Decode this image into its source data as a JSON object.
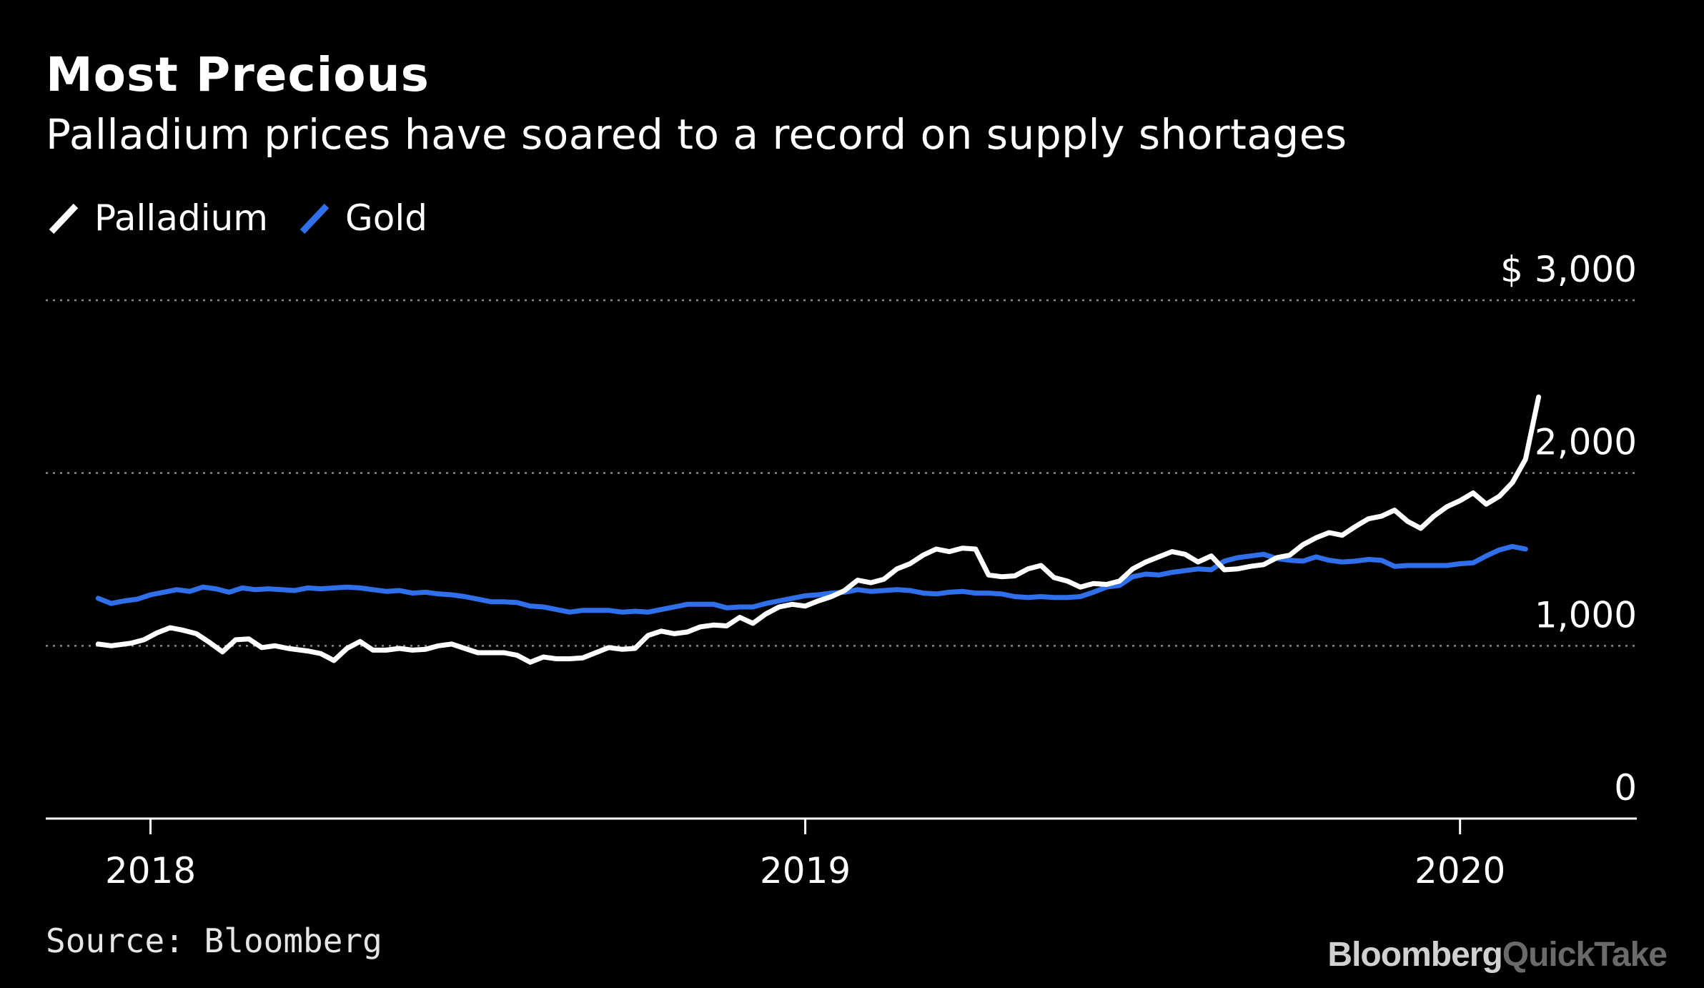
{
  "header": {
    "title": "Most Precious",
    "subtitle": "Palladium prices have soared to a record on supply shortages"
  },
  "legend": [
    {
      "label": "Palladium",
      "color": "#ffffff"
    },
    {
      "label": "Gold",
      "color": "#2f6fea"
    }
  ],
  "footer": {
    "source": "Source: Bloomberg",
    "brand_primary": "Bloomberg",
    "brand_secondary": "QuickTake"
  },
  "chart_data": {
    "type": "line",
    "title": "Most Precious",
    "subtitle": "Palladium prices have soared to a record on supply shortages",
    "xlabel": "",
    "ylabel": "",
    "xlim": [
      2017.84,
      2020.27
    ],
    "ylim": [
      0,
      3000
    ],
    "x_ticks": [
      2018,
      2019,
      2020
    ],
    "x_tick_labels": [
      "2018",
      "2019",
      "2020"
    ],
    "y_ticks": [
      0,
      1000,
      2000,
      3000
    ],
    "y_tick_labels": [
      "0",
      "1,000",
      "2,000",
      "$ 3,000"
    ],
    "grid": "horizontal dotted",
    "legend_position": "top-left",
    "series": [
      {
        "name": "Palladium",
        "color": "#ffffff",
        "points": [
          [
            2017.92,
            1010
          ],
          [
            2017.94,
            1000
          ],
          [
            2017.97,
            1015
          ],
          [
            2017.99,
            1035
          ],
          [
            2018.01,
            1075
          ],
          [
            2018.03,
            1105
          ],
          [
            2018.05,
            1090
          ],
          [
            2018.07,
            1070
          ],
          [
            2018.09,
            1020
          ],
          [
            2018.11,
            965
          ],
          [
            2018.13,
            1035
          ],
          [
            2018.15,
            1040
          ],
          [
            2018.17,
            990
          ],
          [
            2018.19,
            1000
          ],
          [
            2018.21,
            985
          ],
          [
            2018.24,
            970
          ],
          [
            2018.26,
            955
          ],
          [
            2018.28,
            915
          ],
          [
            2018.3,
            985
          ],
          [
            2018.32,
            1025
          ],
          [
            2018.34,
            975
          ],
          [
            2018.36,
            975
          ],
          [
            2018.38,
            985
          ],
          [
            2018.4,
            975
          ],
          [
            2018.42,
            980
          ],
          [
            2018.44,
            1000
          ],
          [
            2018.46,
            1010
          ],
          [
            2018.48,
            985
          ],
          [
            2018.5,
            960
          ],
          [
            2018.52,
            960
          ],
          [
            2018.54,
            960
          ],
          [
            2018.56,
            945
          ],
          [
            2018.58,
            905
          ],
          [
            2018.6,
            935
          ],
          [
            2018.62,
            925
          ],
          [
            2018.64,
            925
          ],
          [
            2018.66,
            930
          ],
          [
            2018.68,
            960
          ],
          [
            2018.7,
            990
          ],
          [
            2018.72,
            980
          ],
          [
            2018.74,
            985
          ],
          [
            2018.76,
            1060
          ],
          [
            2018.78,
            1085
          ],
          [
            2018.8,
            1070
          ],
          [
            2018.82,
            1080
          ],
          [
            2018.84,
            1110
          ],
          [
            2018.86,
            1120
          ],
          [
            2018.88,
            1115
          ],
          [
            2018.9,
            1165
          ],
          [
            2018.92,
            1130
          ],
          [
            2018.94,
            1185
          ],
          [
            2018.96,
            1225
          ],
          [
            2018.98,
            1240
          ],
          [
            2019.0,
            1230
          ],
          [
            2019.02,
            1260
          ],
          [
            2019.04,
            1285
          ],
          [
            2019.06,
            1320
          ],
          [
            2019.08,
            1380
          ],
          [
            2019.1,
            1365
          ],
          [
            2019.12,
            1385
          ],
          [
            2019.14,
            1445
          ],
          [
            2019.16,
            1475
          ],
          [
            2019.18,
            1525
          ],
          [
            2019.2,
            1560
          ],
          [
            2019.22,
            1545
          ],
          [
            2019.24,
            1565
          ],
          [
            2019.26,
            1560
          ],
          [
            2019.28,
            1410
          ],
          [
            2019.3,
            1400
          ],
          [
            2019.32,
            1405
          ],
          [
            2019.34,
            1445
          ],
          [
            2019.36,
            1465
          ],
          [
            2019.38,
            1395
          ],
          [
            2019.4,
            1375
          ],
          [
            2019.42,
            1340
          ],
          [
            2019.44,
            1360
          ],
          [
            2019.46,
            1355
          ],
          [
            2019.48,
            1375
          ],
          [
            2019.5,
            1445
          ],
          [
            2019.52,
            1485
          ],
          [
            2019.54,
            1515
          ],
          [
            2019.56,
            1545
          ],
          [
            2019.58,
            1530
          ],
          [
            2019.6,
            1485
          ],
          [
            2019.62,
            1520
          ],
          [
            2019.64,
            1440
          ],
          [
            2019.66,
            1445
          ],
          [
            2019.68,
            1460
          ],
          [
            2019.7,
            1470
          ],
          [
            2019.72,
            1510
          ],
          [
            2019.74,
            1525
          ],
          [
            2019.76,
            1585
          ],
          [
            2019.78,
            1625
          ],
          [
            2019.8,
            1655
          ],
          [
            2019.82,
            1640
          ],
          [
            2019.84,
            1690
          ],
          [
            2019.86,
            1735
          ],
          [
            2019.88,
            1750
          ],
          [
            2019.9,
            1785
          ],
          [
            2019.92,
            1720
          ],
          [
            2019.94,
            1680
          ],
          [
            2019.96,
            1750
          ],
          [
            2019.98,
            1805
          ],
          [
            2020.0,
            1840
          ],
          [
            2020.02,
            1885
          ],
          [
            2020.04,
            1820
          ],
          [
            2020.06,
            1865
          ],
          [
            2020.08,
            1945
          ],
          [
            2020.1,
            2080
          ],
          [
            2020.12,
            2440
          ]
        ]
      },
      {
        "name": "Gold",
        "color": "#2f6fea",
        "points": [
          [
            2017.92,
            1275
          ],
          [
            2017.94,
            1245
          ],
          [
            2017.96,
            1260
          ],
          [
            2017.98,
            1270
          ],
          [
            2018.0,
            1295
          ],
          [
            2018.02,
            1310
          ],
          [
            2018.04,
            1325
          ],
          [
            2018.06,
            1315
          ],
          [
            2018.08,
            1340
          ],
          [
            2018.1,
            1330
          ],
          [
            2018.12,
            1310
          ],
          [
            2018.14,
            1335
          ],
          [
            2018.16,
            1325
          ],
          [
            2018.18,
            1330
          ],
          [
            2018.2,
            1325
          ],
          [
            2018.22,
            1320
          ],
          [
            2018.24,
            1335
          ],
          [
            2018.26,
            1330
          ],
          [
            2018.28,
            1335
          ],
          [
            2018.3,
            1340
          ],
          [
            2018.32,
            1335
          ],
          [
            2018.34,
            1325
          ],
          [
            2018.36,
            1315
          ],
          [
            2018.38,
            1320
          ],
          [
            2018.4,
            1305
          ],
          [
            2018.42,
            1310
          ],
          [
            2018.44,
            1300
          ],
          [
            2018.46,
            1295
          ],
          [
            2018.48,
            1285
          ],
          [
            2018.5,
            1270
          ],
          [
            2018.52,
            1255
          ],
          [
            2018.54,
            1255
          ],
          [
            2018.56,
            1250
          ],
          [
            2018.58,
            1230
          ],
          [
            2018.6,
            1225
          ],
          [
            2018.62,
            1210
          ],
          [
            2018.64,
            1195
          ],
          [
            2018.66,
            1205
          ],
          [
            2018.68,
            1205
          ],
          [
            2018.7,
            1205
          ],
          [
            2018.72,
            1195
          ],
          [
            2018.74,
            1200
          ],
          [
            2018.76,
            1195
          ],
          [
            2018.78,
            1210
          ],
          [
            2018.8,
            1225
          ],
          [
            2018.82,
            1240
          ],
          [
            2018.84,
            1240
          ],
          [
            2018.86,
            1240
          ],
          [
            2018.88,
            1220
          ],
          [
            2018.9,
            1225
          ],
          [
            2018.92,
            1225
          ],
          [
            2018.94,
            1245
          ],
          [
            2018.96,
            1260
          ],
          [
            2018.98,
            1275
          ],
          [
            2019.0,
            1290
          ],
          [
            2019.02,
            1295
          ],
          [
            2019.04,
            1305
          ],
          [
            2019.06,
            1310
          ],
          [
            2019.08,
            1325
          ],
          [
            2019.1,
            1315
          ],
          [
            2019.12,
            1320
          ],
          [
            2019.14,
            1325
          ],
          [
            2019.16,
            1320
          ],
          [
            2019.18,
            1305
          ],
          [
            2019.2,
            1300
          ],
          [
            2019.22,
            1310
          ],
          [
            2019.24,
            1315
          ],
          [
            2019.26,
            1305
          ],
          [
            2019.28,
            1305
          ],
          [
            2019.3,
            1300
          ],
          [
            2019.32,
            1285
          ],
          [
            2019.34,
            1280
          ],
          [
            2019.36,
            1285
          ],
          [
            2019.38,
            1280
          ],
          [
            2019.4,
            1280
          ],
          [
            2019.42,
            1285
          ],
          [
            2019.44,
            1310
          ],
          [
            2019.46,
            1340
          ],
          [
            2019.48,
            1350
          ],
          [
            2019.5,
            1400
          ],
          [
            2019.52,
            1415
          ],
          [
            2019.54,
            1410
          ],
          [
            2019.56,
            1425
          ],
          [
            2019.58,
            1435
          ],
          [
            2019.6,
            1445
          ],
          [
            2019.62,
            1440
          ],
          [
            2019.64,
            1490
          ],
          [
            2019.66,
            1510
          ],
          [
            2019.68,
            1520
          ],
          [
            2019.7,
            1530
          ],
          [
            2019.72,
            1505
          ],
          [
            2019.74,
            1495
          ],
          [
            2019.76,
            1490
          ],
          [
            2019.78,
            1515
          ],
          [
            2019.8,
            1495
          ],
          [
            2019.82,
            1485
          ],
          [
            2019.84,
            1490
          ],
          [
            2019.86,
            1500
          ],
          [
            2019.88,
            1495
          ],
          [
            2019.9,
            1460
          ],
          [
            2019.92,
            1465
          ],
          [
            2019.94,
            1465
          ],
          [
            2019.96,
            1465
          ],
          [
            2019.98,
            1465
          ],
          [
            2020.0,
            1475
          ],
          [
            2020.02,
            1480
          ],
          [
            2020.04,
            1520
          ],
          [
            2020.06,
            1555
          ],
          [
            2020.08,
            1575
          ],
          [
            2020.1,
            1560
          ]
        ]
      }
    ]
  }
}
